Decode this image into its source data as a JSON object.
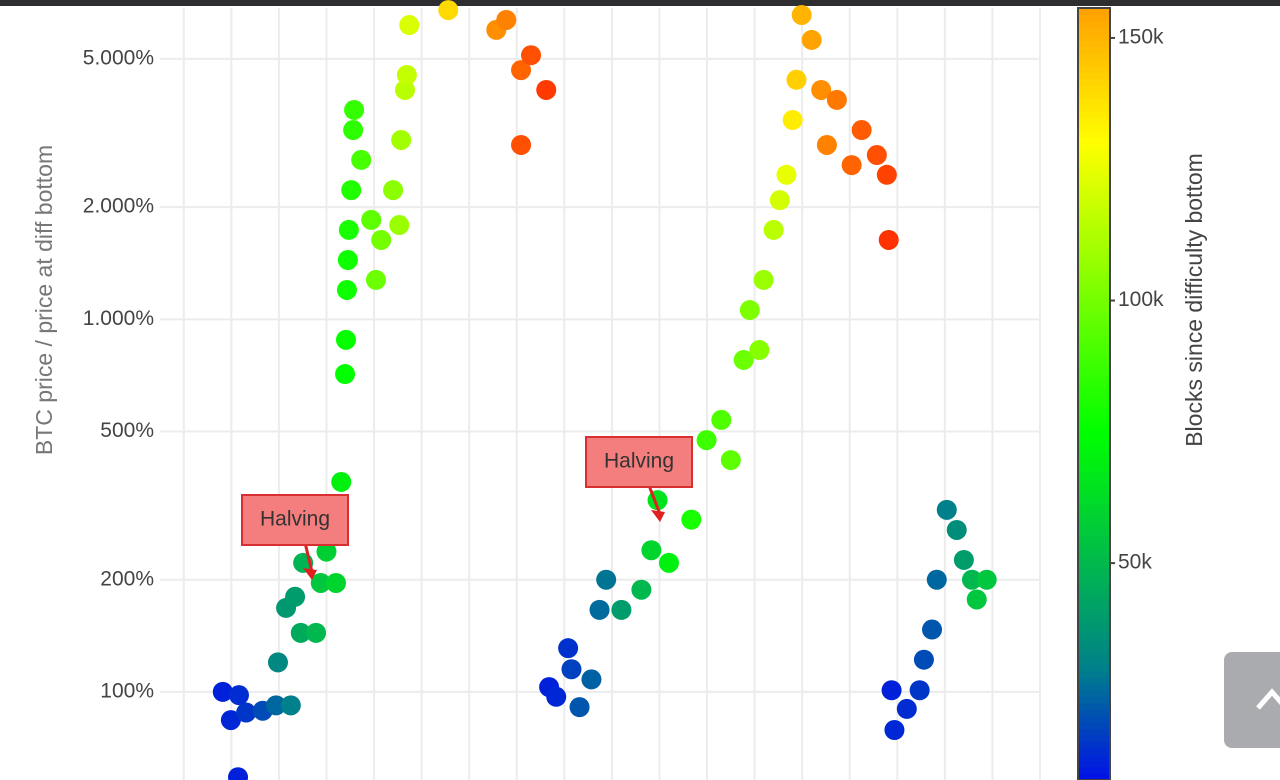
{
  "chart_data": {
    "type": "scatter",
    "y_title": "BTC price / price at diff bottom",
    "x": [
      0.82,
      1.16,
      0.99,
      1.31,
      1.66,
      1.94,
      2.25,
      1.14,
      1.98,
      2.15,
      2.34,
      2.46,
      2.78,
      2.51,
      2.88,
      3.2,
      3.0,
      3.31,
      3.39,
      3.41,
      3.43,
      3.45,
      3.47,
      3.52,
      3.56,
      3.58,
      3.73,
      3.94,
      4.04,
      4.15,
      4.4,
      4.53,
      4.57,
      4.65,
      4.69,
      4.74,
      5.56,
      6.57,
      6.78,
      7.09,
      7.09,
      7.3,
      7.62,
      7.68,
      7.83,
      8.08,
      8.15,
      8.32,
      8.57,
      8.74,
      8.88,
      9.2,
      9.62,
      9.83,
      9.96,
      10.2,
      10.67,
      10.99,
      11.3,
      11.5,
      11.77,
      11.9,
      12.1,
      12.19,
      12.4,
      12.53,
      12.67,
      12.8,
      12.88,
      12.99,
      13.2,
      13.4,
      13.52,
      13.73,
      14.04,
      14.25,
      14.57,
      14.78,
      14.82,
      14.88,
      14.94,
      15.2,
      15.47,
      15.56,
      15.73,
      15.83,
      16.04,
      16.25,
      16.4,
      16.57,
      16.67,
      16.88
    ],
    "y": [
      100,
      98,
      84,
      88,
      89,
      92,
      92,
      59,
      120,
      168,
      180,
      144,
      144,
      222,
      196,
      196,
      238,
      366,
      713,
      881,
      1199,
      1443,
      1738,
      2223,
      3222,
      3648,
      2679,
      1849,
      1276,
      1633,
      2223,
      1791,
      3030,
      4127,
      4529,
      6166,
      6761,
      5984,
      6362,
      4667,
      2938,
      5117,
      4127,
      103,
      97,
      131,
      115,
      91,
      108,
      166,
      200,
      166,
      188,
      240,
      327,
      222,
      290,
      474,
      537,
      419,
      778,
      1059,
      827,
      1276,
      1738,
      2089,
      2443,
      3428,
      4395,
      6561,
      5623,
      4127,
      2938,
      3882,
      2594,
      3222,
      2761,
      2443,
      1633,
      101,
      79,
      90,
      101,
      122,
      147,
      200,
      308,
      272,
      226,
      200,
      177,
      200
    ],
    "color_values": [
      12000,
      14000,
      13000,
      16000,
      20000,
      25000,
      30000,
      12000,
      33000,
      38000,
      40000,
      45000,
      50000,
      48000,
      55000,
      60000,
      58000,
      70000,
      75000,
      76000,
      78000,
      78000,
      80000,
      82000,
      85000,
      86000,
      90000,
      95000,
      98000,
      100000,
      105000,
      108000,
      110000,
      115000,
      117000,
      122000,
      140000,
      160000,
      163000,
      170000,
      175000,
      175000,
      180000,
      12000,
      13000,
      15000,
      18000,
      22000,
      24000,
      26000,
      28000,
      40000,
      50000,
      60000,
      65000,
      70000,
      80000,
      88000,
      92000,
      95000,
      98000,
      102000,
      104000,
      108000,
      115000,
      120000,
      125000,
      135000,
      143000,
      150000,
      155000,
      160000,
      163000,
      165000,
      170000,
      172000,
      175000,
      178000,
      182000,
      12000,
      13000,
      14000,
      16000,
      20000,
      22000,
      25000,
      30000,
      35000,
      40000,
      50000,
      55000,
      55000
    ],
    "xlim": [
      -0.5,
      18
    ],
    "xticks": [
      0,
      1,
      2,
      3,
      4,
      5,
      6,
      7,
      8,
      9,
      10,
      11,
      12,
      13,
      14,
      15,
      16,
      17,
      18
    ],
    "ylim": [
      58,
      6850
    ],
    "log_y": true,
    "yticks": [
      {
        "value": 100,
        "label": "100%"
      },
      {
        "value": 200,
        "label": "200%"
      },
      {
        "value": 500,
        "label": "500%"
      },
      {
        "value": 1000,
        "label": "1.000%"
      },
      {
        "value": 2000,
        "label": "2.000%"
      },
      {
        "value": 5000,
        "label": "5.000%"
      }
    ],
    "grid": true,
    "colorbar": {
      "title": "Blocks since difficulty bottom",
      "clim": [
        8700,
        155700
      ],
      "ticks": [
        {
          "value": 50000,
          "label": "50k"
        },
        {
          "value": 100000,
          "label": "100k"
        },
        {
          "value": 150000,
          "label": "150k"
        }
      ],
      "colorscale": [
        {
          "value": 8700,
          "color": "#0010e8"
        },
        {
          "value": 30000,
          "color": "#00808a"
        },
        {
          "value": 75000,
          "color": "#00ff00"
        },
        {
          "value": 130000,
          "color": "#ffff00"
        },
        {
          "value": 155700,
          "color": "#ffa000"
        },
        {
          "value": 190000,
          "color": "#ff1000"
        }
      ]
    },
    "annotations": [
      {
        "text": "Halving"
      },
      {
        "text": "Halving"
      }
    ]
  }
}
